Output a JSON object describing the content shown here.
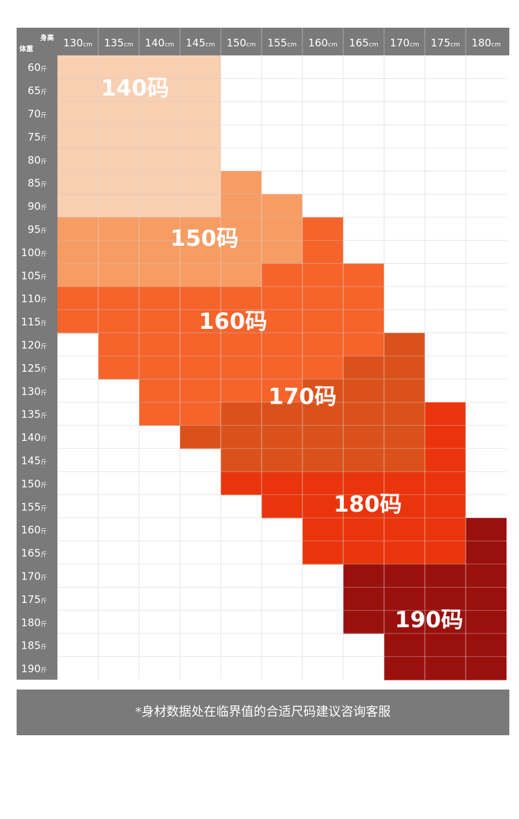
{
  "chart_data": {
    "type": "table",
    "title": "",
    "corner": {
      "column_header": "身高",
      "row_header": "体重"
    },
    "columns": [
      {
        "num": "130",
        "unit": "cm"
      },
      {
        "num": "135",
        "unit": "cm"
      },
      {
        "num": "140",
        "unit": "cm"
      },
      {
        "num": "145",
        "unit": "cm"
      },
      {
        "num": "150",
        "unit": "cm"
      },
      {
        "num": "155",
        "unit": "cm"
      },
      {
        "num": "160",
        "unit": "cm"
      },
      {
        "num": "165",
        "unit": "cm"
      },
      {
        "num": "170",
        "unit": "cm"
      },
      {
        "num": "175",
        "unit": "cm"
      },
      {
        "num": "180",
        "unit": "cm"
      }
    ],
    "rows": [
      {
        "num": "60",
        "unit": "斤"
      },
      {
        "num": "65",
        "unit": "斤"
      },
      {
        "num": "70",
        "unit": "斤"
      },
      {
        "num": "75",
        "unit": "斤"
      },
      {
        "num": "80",
        "unit": "斤"
      },
      {
        "num": "85",
        "unit": "斤"
      },
      {
        "num": "90",
        "unit": "斤"
      },
      {
        "num": "95",
        "unit": "斤"
      },
      {
        "num": "100",
        "unit": "斤"
      },
      {
        "num": "105",
        "unit": "斤"
      },
      {
        "num": "110",
        "unit": "斤"
      },
      {
        "num": "115",
        "unit": "斤"
      },
      {
        "num": "120",
        "unit": "斤"
      },
      {
        "num": "125",
        "unit": "斤"
      },
      {
        "num": "130",
        "unit": "斤"
      },
      {
        "num": "135",
        "unit": "斤"
      },
      {
        "num": "140",
        "unit": "斤"
      },
      {
        "num": "145",
        "unit": "斤"
      },
      {
        "num": "150",
        "unit": "斤"
      },
      {
        "num": "155",
        "unit": "斤"
      },
      {
        "num": "160",
        "unit": "斤"
      },
      {
        "num": "165",
        "unit": "斤"
      },
      {
        "num": "170",
        "unit": "斤"
      },
      {
        "num": "175",
        "unit": "斤"
      },
      {
        "num": "180",
        "unit": "斤"
      },
      {
        "num": "185",
        "unit": "斤"
      },
      {
        "num": "190",
        "unit": "斤"
      }
    ],
    "sizes": [
      {
        "label": "140码",
        "color": "#f9cfb1"
      },
      {
        "label": "150码",
        "color": "#f79c63"
      },
      {
        "label": "160码",
        "color": "#f6632b"
      },
      {
        "label": "170码",
        "color": "#db511c"
      },
      {
        "label": "180码",
        "color": "#ea350c"
      },
      {
        "label": "190码",
        "color": "#9a100d"
      }
    ],
    "row_spans_by_size": [
      [
        [
          0,
          3
        ],
        [
          0,
          3
        ],
        [
          0,
          3
        ],
        [
          0,
          3
        ],
        [
          0,
          3
        ],
        [
          0,
          3
        ],
        [
          0,
          3
        ],
        [],
        [],
        [],
        [],
        [],
        [],
        [],
        [],
        [],
        [],
        [],
        [],
        [],
        [],
        [],
        [],
        [],
        [],
        [],
        []
      ],
      [
        [],
        [],
        [],
        [],
        [],
        [
          4,
          4
        ],
        [
          4,
          5
        ],
        [
          0,
          5
        ],
        [
          0,
          5
        ],
        [
          0,
          4
        ],
        [],
        [],
        [],
        [],
        [],
        [],
        [],
        [],
        [],
        [],
        [],
        [],
        [],
        [],
        [],
        [],
        []
      ],
      [
        [],
        [],
        [],
        [],
        [],
        [],
        [],
        [
          6,
          6
        ],
        [
          6,
          6
        ],
        [
          5,
          7
        ],
        [
          0,
          7
        ],
        [
          0,
          7
        ],
        [
          1,
          7
        ],
        [
          1,
          6
        ],
        [
          2,
          5
        ],
        [
          2,
          3
        ],
        [],
        [],
        [],
        [],
        [],
        [],
        [],
        [],
        [],
        [],
        []
      ],
      [
        [],
        [],
        [],
        [],
        [],
        [],
        [],
        [],
        [],
        [],
        [],
        [],
        [
          8,
          8
        ],
        [
          7,
          8
        ],
        [
          6,
          8
        ],
        [
          4,
          8
        ],
        [
          3,
          8
        ],
        [
          4,
          8
        ],
        [],
        [],
        [],
        [],
        [],
        [],
        [],
        [],
        []
      ],
      [
        [],
        [],
        [],
        [],
        [],
        [],
        [],
        [],
        [],
        [],
        [],
        [],
        [],
        [],
        [],
        [
          9,
          9
        ],
        [
          9,
          9
        ],
        [
          9,
          9
        ],
        [
          4,
          9
        ],
        [
          5,
          9
        ],
        [
          6,
          9
        ],
        [
          6,
          9
        ],
        [],
        [],
        [],
        [],
        []
      ],
      [
        [],
        [],
        [],
        [],
        [],
        [],
        [],
        [],
        [],
        [],
        [],
        [],
        [],
        [],
        [],
        [],
        [],
        [],
        [],
        [],
        [
          10,
          10
        ],
        [
          10,
          10
        ],
        [
          7,
          10
        ],
        [
          7,
          10
        ],
        [
          7,
          10
        ],
        [
          8,
          10
        ],
        [
          8,
          10
        ]
      ]
    ],
    "header_bg": "#7a7a7a",
    "grid_line": "#e8e8e8"
  },
  "footer": {
    "note": "*身材数据处在临界值的合适尺码建议咨询客服"
  }
}
